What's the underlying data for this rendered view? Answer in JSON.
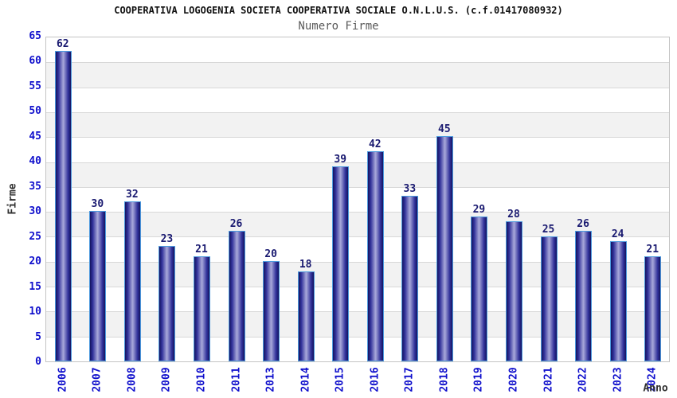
{
  "header": {
    "title": "COOPERATIVA LOGOGENIA SOCIETA COOPERATIVA SOCIALE O.N.L.U.S. (c.f.01417080932)",
    "subtitle": "Numero Firme"
  },
  "chart_data": {
    "type": "bar",
    "title": "Numero Firme",
    "categories": [
      "2006",
      "2007",
      "2008",
      "2009",
      "2010",
      "2011",
      "2013",
      "2014",
      "2015",
      "2016",
      "2017",
      "2018",
      "2019",
      "2020",
      "2021",
      "2022",
      "2023",
      "2024"
    ],
    "values": [
      62,
      30,
      32,
      23,
      21,
      26,
      20,
      18,
      39,
      42,
      33,
      45,
      29,
      28,
      25,
      26,
      24,
      21
    ],
    "xlabel": "Anno",
    "ylabel": "Firme",
    "ylim": [
      0,
      65
    ],
    "ytick_step": 5,
    "yticks": [
      0,
      5,
      10,
      15,
      20,
      25,
      30,
      35,
      40,
      45,
      50,
      55,
      60,
      65
    ],
    "grid": true,
    "legend_position": "none",
    "band_fill": "alternating",
    "colors": {
      "bar_gradient_dark": "#14145f",
      "bar_gradient_mid": "#32329b",
      "bar_gradient_light": "#a9a9da",
      "bar_border": "#4d9ade",
      "value_label": "#191970",
      "tick_label": "#0f0fcc",
      "axis_title": "#303030",
      "title": "#111111",
      "subtitle": "#5a5a5a",
      "band_gray": "#f2f2f2",
      "gridline": "#d8d8d8",
      "plot_border": "#c4c4c4",
      "background": "#ffffff"
    }
  }
}
